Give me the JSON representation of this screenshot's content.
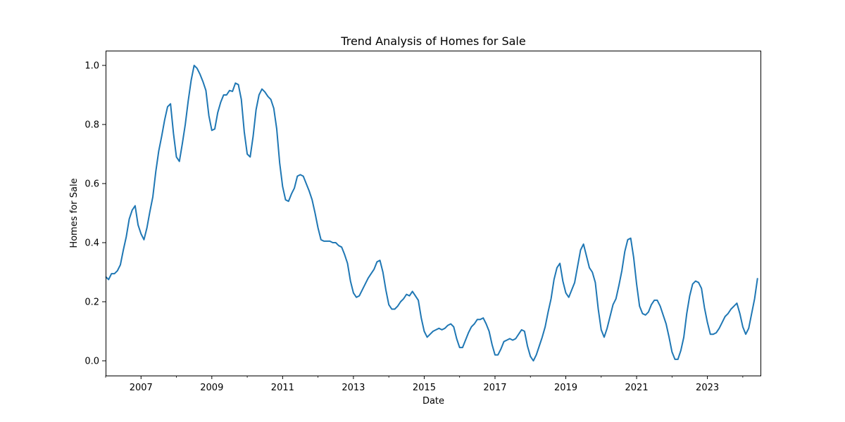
{
  "chart_data": {
    "type": "line",
    "title": "Trend Analysis of Homes for Sale",
    "xlabel": "Date",
    "ylabel": "Homes for Sale",
    "xlim": [
      "2006-01",
      "2024-07"
    ],
    "ylim": [
      -0.05,
      1.05
    ],
    "x_ticks": [
      2007,
      2009,
      2011,
      2013,
      2015,
      2017,
      2019,
      2021,
      2023
    ],
    "y_ticks": [
      0.0,
      0.2,
      0.4,
      0.6,
      0.8,
      1.0
    ],
    "grid": false,
    "line_color": "#1f77b4",
    "series": [
      {
        "points": [
          [
            "2006-01",
            0.285
          ],
          [
            "2006-02",
            0.275
          ],
          [
            "2006-03",
            0.295
          ],
          [
            "2006-04",
            0.295
          ],
          [
            "2006-05",
            0.305
          ],
          [
            "2006-06",
            0.325
          ],
          [
            "2006-07",
            0.375
          ],
          [
            "2006-08",
            0.42
          ],
          [
            "2006-09",
            0.48
          ],
          [
            "2006-10",
            0.51
          ],
          [
            "2006-11",
            0.525
          ],
          [
            "2006-12",
            0.46
          ],
          [
            "2007-01",
            0.43
          ],
          [
            "2007-02",
            0.41
          ],
          [
            "2007-03",
            0.45
          ],
          [
            "2007-04",
            0.505
          ],
          [
            "2007-05",
            0.555
          ],
          [
            "2007-06",
            0.64
          ],
          [
            "2007-07",
            0.71
          ],
          [
            "2007-08",
            0.76
          ],
          [
            "2007-09",
            0.815
          ],
          [
            "2007-10",
            0.86
          ],
          [
            "2007-11",
            0.87
          ],
          [
            "2007-12",
            0.77
          ],
          [
            "2008-01",
            0.69
          ],
          [
            "2008-02",
            0.675
          ],
          [
            "2008-03",
            0.735
          ],
          [
            "2008-04",
            0.8
          ],
          [
            "2008-05",
            0.88
          ],
          [
            "2008-06",
            0.95
          ],
          [
            "2008-07",
            1.0
          ],
          [
            "2008-08",
            0.99
          ],
          [
            "2008-09",
            0.97
          ],
          [
            "2008-10",
            0.945
          ],
          [
            "2008-11",
            0.915
          ],
          [
            "2008-12",
            0.83
          ],
          [
            "2009-01",
            0.78
          ],
          [
            "2009-02",
            0.785
          ],
          [
            "2009-03",
            0.84
          ],
          [
            "2009-04",
            0.875
          ],
          [
            "2009-05",
            0.9
          ],
          [
            "2009-06",
            0.9
          ],
          [
            "2009-07",
            0.915
          ],
          [
            "2009-08",
            0.912
          ],
          [
            "2009-09",
            0.94
          ],
          [
            "2009-10",
            0.935
          ],
          [
            "2009-11",
            0.885
          ],
          [
            "2009-12",
            0.775
          ],
          [
            "2010-01",
            0.7
          ],
          [
            "2010-02",
            0.69
          ],
          [
            "2010-03",
            0.76
          ],
          [
            "2010-04",
            0.85
          ],
          [
            "2010-05",
            0.9
          ],
          [
            "2010-06",
            0.92
          ],
          [
            "2010-07",
            0.91
          ],
          [
            "2010-08",
            0.895
          ],
          [
            "2010-09",
            0.885
          ],
          [
            "2010-10",
            0.855
          ],
          [
            "2010-11",
            0.785
          ],
          [
            "2010-12",
            0.67
          ],
          [
            "2011-01",
            0.59
          ],
          [
            "2011-02",
            0.545
          ],
          [
            "2011-03",
            0.54
          ],
          [
            "2011-04",
            0.565
          ],
          [
            "2011-05",
            0.585
          ],
          [
            "2011-06",
            0.625
          ],
          [
            "2011-07",
            0.63
          ],
          [
            "2011-08",
            0.625
          ],
          [
            "2011-09",
            0.6
          ],
          [
            "2011-10",
            0.575
          ],
          [
            "2011-11",
            0.545
          ],
          [
            "2011-12",
            0.5
          ],
          [
            "2012-01",
            0.45
          ],
          [
            "2012-02",
            0.41
          ],
          [
            "2012-03",
            0.405
          ],
          [
            "2012-04",
            0.405
          ],
          [
            "2012-05",
            0.405
          ],
          [
            "2012-06",
            0.4
          ],
          [
            "2012-07",
            0.4
          ],
          [
            "2012-08",
            0.39
          ],
          [
            "2012-09",
            0.385
          ],
          [
            "2012-10",
            0.36
          ],
          [
            "2012-11",
            0.33
          ],
          [
            "2012-12",
            0.27
          ],
          [
            "2013-01",
            0.23
          ],
          [
            "2013-02",
            0.215
          ],
          [
            "2013-03",
            0.22
          ],
          [
            "2013-04",
            0.24
          ],
          [
            "2013-05",
            0.26
          ],
          [
            "2013-06",
            0.28
          ],
          [
            "2013-07",
            0.295
          ],
          [
            "2013-08",
            0.31
          ],
          [
            "2013-09",
            0.335
          ],
          [
            "2013-10",
            0.34
          ],
          [
            "2013-11",
            0.3
          ],
          [
            "2013-12",
            0.24
          ],
          [
            "2014-01",
            0.19
          ],
          [
            "2014-02",
            0.175
          ],
          [
            "2014-03",
            0.175
          ],
          [
            "2014-04",
            0.185
          ],
          [
            "2014-05",
            0.2
          ],
          [
            "2014-06",
            0.21
          ],
          [
            "2014-07",
            0.225
          ],
          [
            "2014-08",
            0.22
          ],
          [
            "2014-09",
            0.235
          ],
          [
            "2014-10",
            0.22
          ],
          [
            "2014-11",
            0.205
          ],
          [
            "2014-12",
            0.145
          ],
          [
            "2015-01",
            0.1
          ],
          [
            "2015-02",
            0.08
          ],
          [
            "2015-03",
            0.09
          ],
          [
            "2015-04",
            0.1
          ],
          [
            "2015-05",
            0.105
          ],
          [
            "2015-06",
            0.11
          ],
          [
            "2015-07",
            0.105
          ],
          [
            "2015-08",
            0.11
          ],
          [
            "2015-09",
            0.12
          ],
          [
            "2015-10",
            0.125
          ],
          [
            "2015-11",
            0.115
          ],
          [
            "2015-12",
            0.075
          ],
          [
            "2016-01",
            0.045
          ],
          [
            "2016-02",
            0.045
          ],
          [
            "2016-03",
            0.07
          ],
          [
            "2016-04",
            0.095
          ],
          [
            "2016-05",
            0.115
          ],
          [
            "2016-06",
            0.125
          ],
          [
            "2016-07",
            0.14
          ],
          [
            "2016-08",
            0.14
          ],
          [
            "2016-09",
            0.145
          ],
          [
            "2016-10",
            0.125
          ],
          [
            "2016-11",
            0.1
          ],
          [
            "2016-12",
            0.055
          ],
          [
            "2017-01",
            0.02
          ],
          [
            "2017-02",
            0.02
          ],
          [
            "2017-03",
            0.04
          ],
          [
            "2017-04",
            0.065
          ],
          [
            "2017-05",
            0.07
          ],
          [
            "2017-06",
            0.075
          ],
          [
            "2017-07",
            0.07
          ],
          [
            "2017-08",
            0.075
          ],
          [
            "2017-09",
            0.09
          ],
          [
            "2017-10",
            0.105
          ],
          [
            "2017-11",
            0.1
          ],
          [
            "2017-12",
            0.05
          ],
          [
            "2018-01",
            0.015
          ],
          [
            "2018-02",
            0.0
          ],
          [
            "2018-03",
            0.02
          ],
          [
            "2018-04",
            0.05
          ],
          [
            "2018-05",
            0.08
          ],
          [
            "2018-06",
            0.115
          ],
          [
            "2018-07",
            0.165
          ],
          [
            "2018-08",
            0.21
          ],
          [
            "2018-09",
            0.275
          ],
          [
            "2018-10",
            0.315
          ],
          [
            "2018-11",
            0.33
          ],
          [
            "2018-12",
            0.27
          ],
          [
            "2019-01",
            0.23
          ],
          [
            "2019-02",
            0.215
          ],
          [
            "2019-03",
            0.24
          ],
          [
            "2019-04",
            0.265
          ],
          [
            "2019-05",
            0.32
          ],
          [
            "2019-06",
            0.375
          ],
          [
            "2019-07",
            0.395
          ],
          [
            "2019-08",
            0.355
          ],
          [
            "2019-09",
            0.315
          ],
          [
            "2019-10",
            0.3
          ],
          [
            "2019-11",
            0.265
          ],
          [
            "2019-12",
            0.175
          ],
          [
            "2020-01",
            0.105
          ],
          [
            "2020-02",
            0.08
          ],
          [
            "2020-03",
            0.11
          ],
          [
            "2020-04",
            0.15
          ],
          [
            "2020-05",
            0.19
          ],
          [
            "2020-06",
            0.21
          ],
          [
            "2020-07",
            0.255
          ],
          [
            "2020-08",
            0.305
          ],
          [
            "2020-09",
            0.37
          ],
          [
            "2020-10",
            0.41
          ],
          [
            "2020-11",
            0.415
          ],
          [
            "2020-12",
            0.35
          ],
          [
            "2021-01",
            0.26
          ],
          [
            "2021-02",
            0.185
          ],
          [
            "2021-03",
            0.16
          ],
          [
            "2021-04",
            0.155
          ],
          [
            "2021-05",
            0.165
          ],
          [
            "2021-06",
            0.19
          ],
          [
            "2021-07",
            0.205
          ],
          [
            "2021-08",
            0.205
          ],
          [
            "2021-09",
            0.185
          ],
          [
            "2021-10",
            0.155
          ],
          [
            "2021-11",
            0.125
          ],
          [
            "2021-12",
            0.08
          ],
          [
            "2022-01",
            0.03
          ],
          [
            "2022-02",
            0.005
          ],
          [
            "2022-03",
            0.005
          ],
          [
            "2022-04",
            0.035
          ],
          [
            "2022-05",
            0.08
          ],
          [
            "2022-06",
            0.16
          ],
          [
            "2022-07",
            0.22
          ],
          [
            "2022-08",
            0.26
          ],
          [
            "2022-09",
            0.27
          ],
          [
            "2022-10",
            0.265
          ],
          [
            "2022-11",
            0.245
          ],
          [
            "2022-12",
            0.18
          ],
          [
            "2023-01",
            0.13
          ],
          [
            "2023-02",
            0.09
          ],
          [
            "2023-03",
            0.09
          ],
          [
            "2023-04",
            0.095
          ],
          [
            "2023-05",
            0.11
          ],
          [
            "2023-06",
            0.13
          ],
          [
            "2023-07",
            0.15
          ],
          [
            "2023-08",
            0.16
          ],
          [
            "2023-09",
            0.175
          ],
          [
            "2023-10",
            0.185
          ],
          [
            "2023-11",
            0.195
          ],
          [
            "2023-12",
            0.16
          ],
          [
            "2024-01",
            0.115
          ],
          [
            "2024-02",
            0.09
          ],
          [
            "2024-03",
            0.11
          ],
          [
            "2024-04",
            0.16
          ],
          [
            "2024-05",
            0.21
          ],
          [
            "2024-06",
            0.28
          ]
        ]
      }
    ]
  }
}
